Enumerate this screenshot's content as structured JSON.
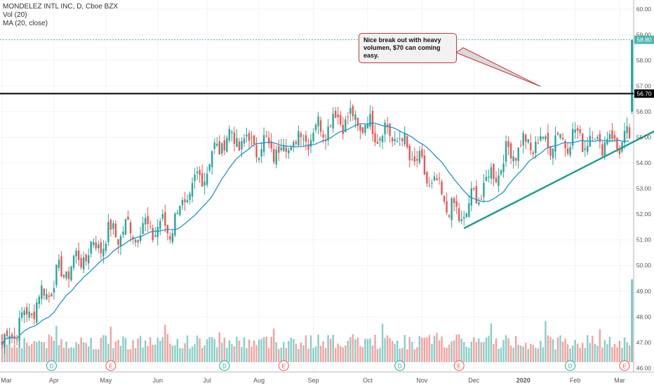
{
  "header": {
    "symbol_line": "MONDELEZ INTL INC, D, Cboe BZX",
    "volume_line": "Vol (20)",
    "ma_line": "MA (20, close)"
  },
  "annotation": {
    "text": "Nice break out with heavy volumen, $70 can coming easy."
  },
  "colors": {
    "up": "#26a69a",
    "down": "#ef5350",
    "ma": "#2196c4",
    "trendline": "#1b9c8c",
    "resistance": "#000000",
    "target": "#4db6ac",
    "note_border": "#c8343c"
  },
  "chart_data": {
    "type": "candlestick",
    "title": "MONDELEZ INTL INC, D, Cboe BZX",
    "x_ticks": [
      "Mar",
      "Apr",
      "May",
      "Jun",
      "Jul",
      "Aug",
      "Sep",
      "Oct",
      "Nov",
      "Dec",
      "2020",
      "Feb",
      "Mar"
    ],
    "y_ticks": [
      46.0,
      47.0,
      48.0,
      49.0,
      50.0,
      51.0,
      52.0,
      53.0,
      54.0,
      55.0,
      56.0,
      57.0,
      58.0,
      59.0,
      60.0
    ],
    "ylim": [
      45.3,
      60.35
    ],
    "price_labels": [
      {
        "label": "58.80",
        "value": 58.8
      },
      {
        "label": "56.70",
        "value": 56.7
      }
    ],
    "resistance_level": 56.7,
    "target_level": 58.8,
    "trendline": {
      "start": [
        187,
        51.45
      ],
      "end": [
        302,
        57.1
      ]
    },
    "last_candle": {
      "day": 255,
      "open": 56.0,
      "high": 58.8,
      "low": 55.9,
      "close": 58.8
    },
    "monthly_closes": [
      {
        "month": "Mar",
        "day": 0,
        "close": 46.9
      },
      {
        "month": "Apr",
        "day": 23,
        "close": 49.6
      },
      {
        "month": "May",
        "day": 45,
        "close": 51.3
      },
      {
        "month": "Jun",
        "day": 68,
        "close": 51.5
      },
      {
        "month": "Jul",
        "day": 90,
        "close": 55.0
      },
      {
        "month": "Aug",
        "day": 112,
        "close": 54.5
      },
      {
        "month": "Sep",
        "day": 137,
        "close": 55.8
      },
      {
        "month": "Oct",
        "day": 160,
        "close": 55.0
      },
      {
        "month": "Nov",
        "day": 185,
        "close": 51.8
      },
      {
        "month": "Dec",
        "day": 207,
        "close": 54.6
      },
      {
        "month": "Jan",
        "day": 230,
        "close": 55.0
      }
    ],
    "volume_labels": [
      {
        "day": 20,
        "label": "D"
      },
      {
        "day": 44,
        "label": "E"
      },
      {
        "day": 90,
        "label": "D"
      },
      {
        "day": 114,
        "label": "E"
      },
      {
        "day": 161,
        "label": "D"
      },
      {
        "day": 185,
        "label": "E"
      },
      {
        "day": 230,
        "label": "D"
      },
      {
        "day": 252,
        "label": "E"
      }
    ]
  }
}
